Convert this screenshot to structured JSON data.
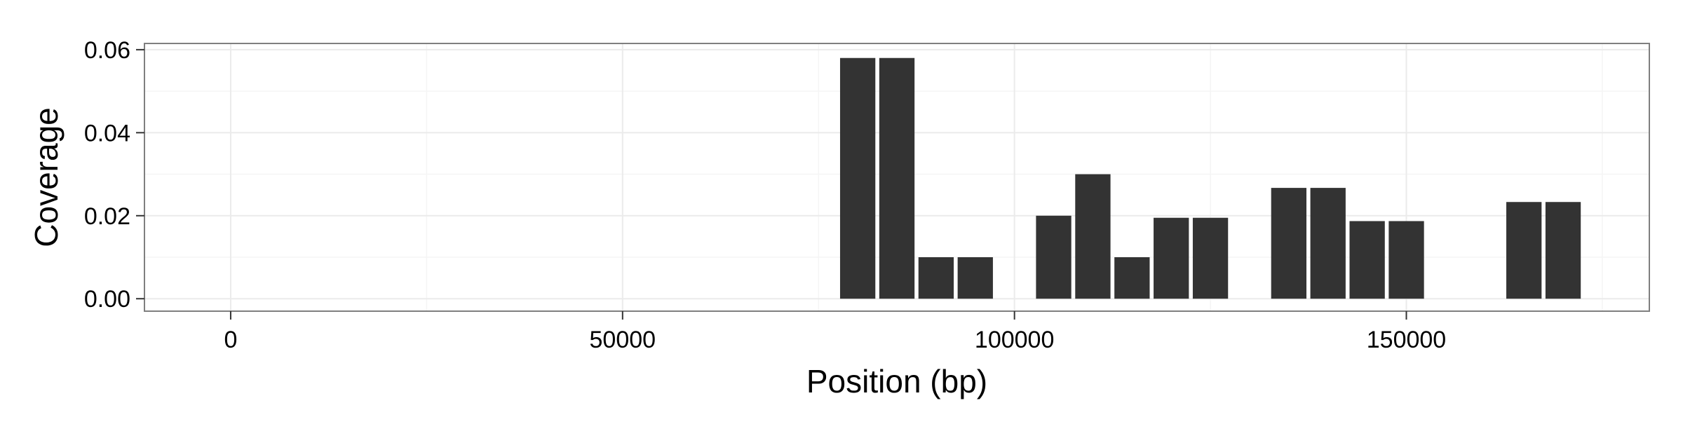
{
  "chart_data": {
    "type": "bar",
    "title": "",
    "xlabel": "Position (bp)",
    "ylabel": "Coverage",
    "xlim": [
      -11000,
      181000
    ],
    "ylim": [
      -0.003,
      0.0615
    ],
    "x_ticks": [
      0,
      50000,
      100000,
      150000
    ],
    "x_tick_labels": [
      "0",
      "50000",
      "100000",
      "150000"
    ],
    "y_ticks": [
      0.0,
      0.02,
      0.04,
      0.06
    ],
    "y_tick_labels": [
      "0.00",
      "0.02",
      "0.04",
      "0.06"
    ],
    "grid": true,
    "bar_width": 4500,
    "x": [
      80000,
      85000,
      90000,
      95000,
      105000,
      110000,
      115000,
      120000,
      125000,
      135000,
      140000,
      145000,
      150000,
      165000,
      170000
    ],
    "values": [
      0.058,
      0.058,
      0.01,
      0.01,
      0.02,
      0.03,
      0.01,
      0.0195,
      0.0195,
      0.0267,
      0.0267,
      0.0187,
      0.0187,
      0.0233,
      0.0233
    ],
    "colors": {
      "bar": "#333333",
      "panel_border": "#7f7f7f",
      "grid_major": "#ebebeb",
      "grid_minor": "#f5f5f5",
      "background": "#ffffff"
    }
  }
}
